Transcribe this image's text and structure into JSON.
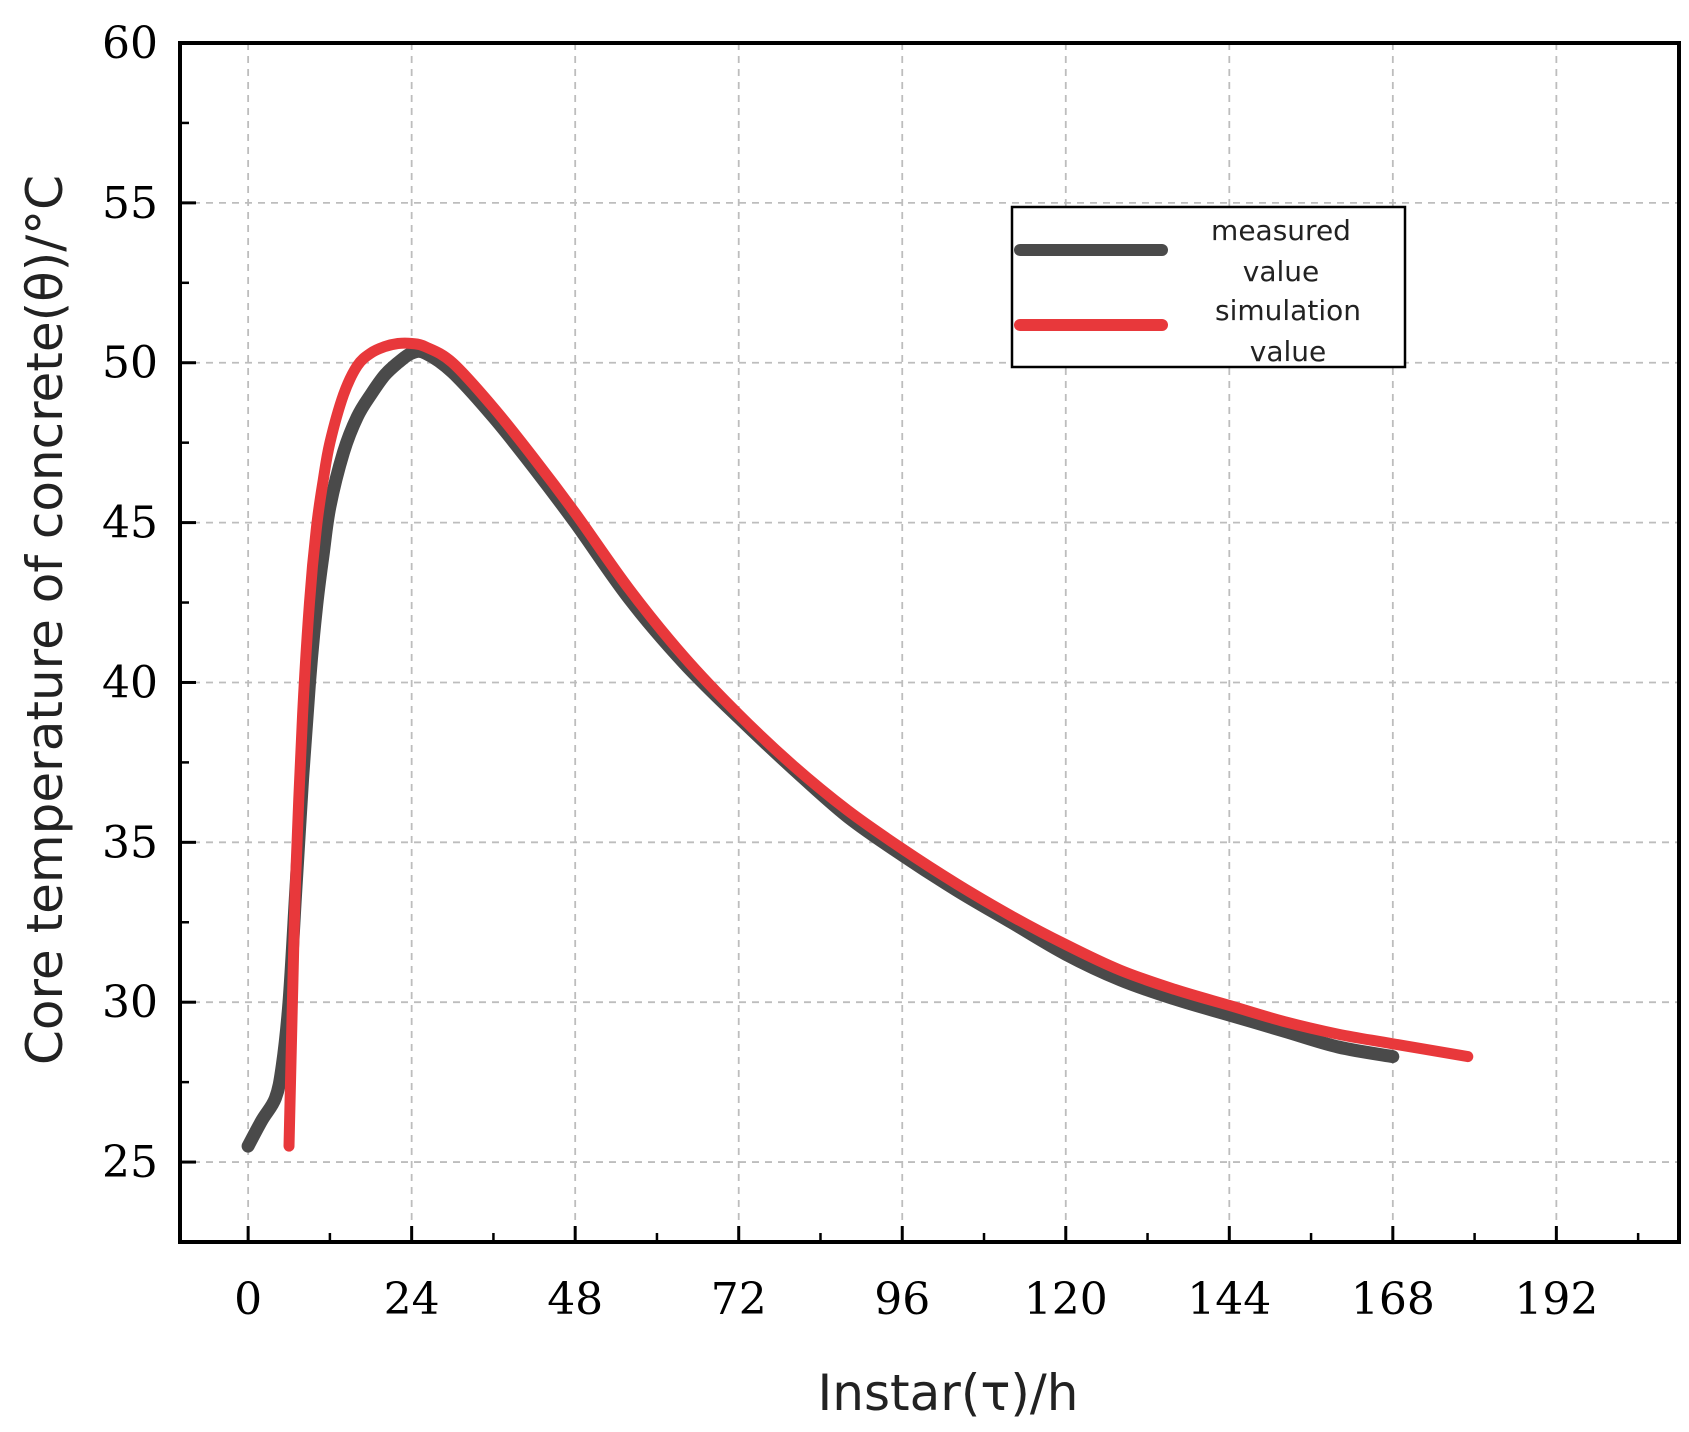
{
  "chart_data": {
    "type": "line",
    "title": "",
    "xlabel": "Instar(τ)/h",
    "ylabel": "Core temperature of concrete(θ)/°C",
    "xlim": [
      -10,
      210
    ],
    "ylim": [
      22.5,
      60
    ],
    "x_ticks": [
      0,
      24,
      48,
      72,
      96,
      120,
      144,
      168,
      192
    ],
    "x_tick_labels": [
      "0",
      "24",
      "48",
      "72",
      "96",
      "120",
      "144",
      "168",
      "192"
    ],
    "y_ticks": [
      25,
      30,
      35,
      40,
      45,
      50,
      55,
      60
    ],
    "y_tick_labels": [
      "25",
      "30",
      "35",
      "40",
      "45",
      "50",
      "55",
      "60"
    ],
    "grid": true,
    "legend_position": "top-right",
    "series": [
      {
        "name": "measured value",
        "color": "#4a4a4a",
        "x": [
          0,
          2,
          4,
          5,
          6,
          7,
          8,
          9,
          10,
          11,
          12,
          14,
          16,
          18,
          20,
          22,
          24,
          26,
          30,
          36,
          42,
          48,
          56,
          64,
          72,
          80,
          88,
          96,
          104,
          112,
          120,
          128,
          136,
          144,
          152,
          160,
          168
        ],
        "y": [
          25.5,
          26.3,
          27.0,
          28.0,
          30.0,
          33.5,
          37.0,
          40.0,
          42.3,
          44.0,
          45.5,
          47.2,
          48.3,
          49.0,
          49.6,
          50.0,
          50.3,
          50.3,
          49.7,
          48.3,
          46.7,
          45.0,
          42.6,
          40.6,
          38.9,
          37.3,
          35.8,
          34.6,
          33.5,
          32.5,
          31.5,
          30.7,
          30.1,
          29.6,
          29.1,
          28.6,
          28.3
        ]
      },
      {
        "name": "simulation value",
        "color": "#e8383b",
        "x": [
          6,
          6.5,
          7,
          8,
          9,
          10,
          11,
          12,
          14,
          16,
          18,
          20,
          22,
          24,
          26,
          30,
          36,
          42,
          48,
          56,
          64,
          72,
          80,
          88,
          96,
          104,
          112,
          120,
          128,
          136,
          144,
          152,
          160,
          168,
          179
        ],
        "y": [
          25.5,
          30.0,
          34.0,
          39.0,
          42.5,
          44.8,
          46.3,
          47.5,
          49.0,
          49.9,
          50.3,
          50.5,
          50.6,
          50.6,
          50.5,
          50.0,
          48.6,
          47.0,
          45.3,
          42.9,
          40.8,
          39.0,
          37.4,
          36.0,
          34.8,
          33.7,
          32.7,
          31.8,
          31.0,
          30.4,
          29.9,
          29.4,
          29.0,
          28.7,
          28.3
        ]
      }
    ]
  },
  "legend": {
    "measured_line1": "measured",
    "measured_line2": "value",
    "simulation_line1": "simulation",
    "simulation_line2": "value"
  }
}
